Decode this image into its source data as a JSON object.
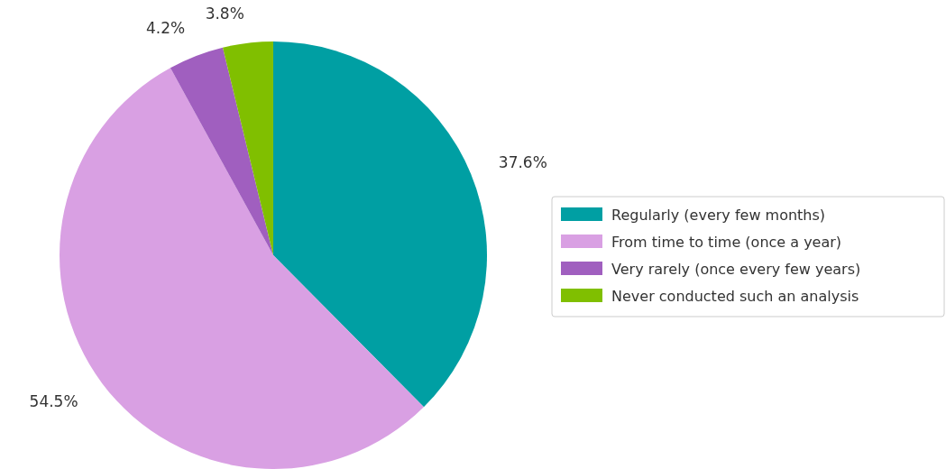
{
  "chart_data": {
    "type": "pie",
    "categories": [
      "Regularly (every few months)",
      "From time to time (once a year)",
      "Very rarely (once every few years)",
      "Never conducted such an analysis"
    ],
    "values": [
      37.6,
      54.5,
      4.2,
      3.8
    ],
    "colors": [
      "#009fa3",
      "#d9a0e3",
      "#a05fbf",
      "#80bf00"
    ],
    "value_labels": [
      "37.6%",
      "54.5%",
      "4.2%",
      "3.8%"
    ],
    "legend": "right"
  }
}
